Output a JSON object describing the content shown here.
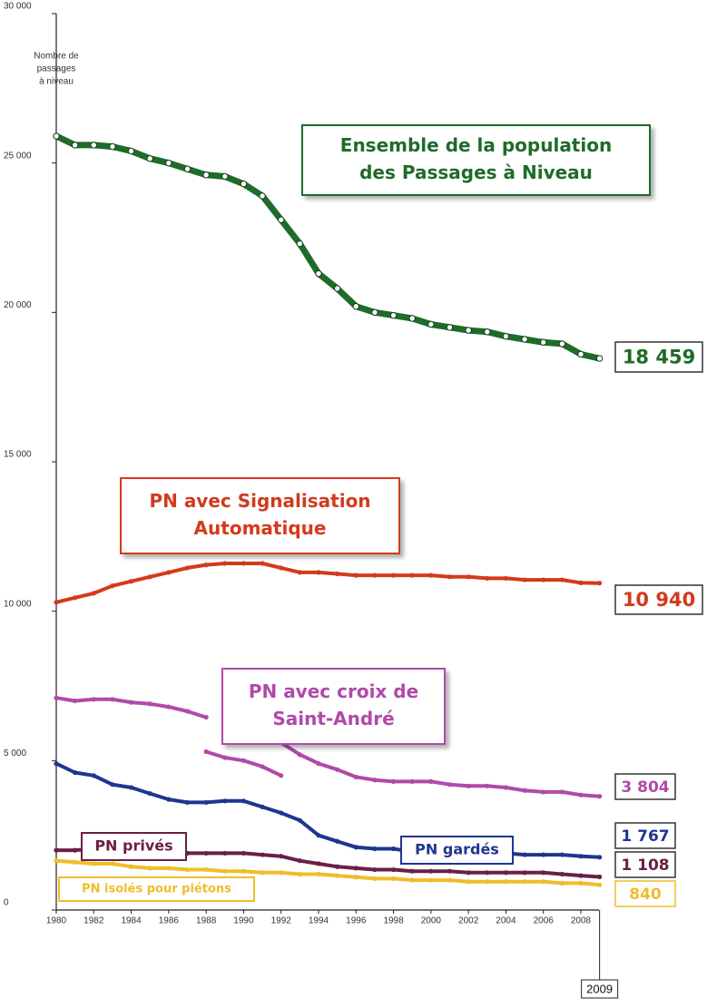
{
  "chart_data": {
    "type": "line",
    "y_axis_label": [
      "Nombre de",
      "passages",
      "à niveau"
    ],
    "x": [
      1980,
      1981,
      1982,
      1983,
      1984,
      1985,
      1986,
      1987,
      1988,
      1989,
      1990,
      1991,
      1992,
      1993,
      1994,
      1995,
      1996,
      1997,
      1998,
      1999,
      2000,
      2001,
      2002,
      2003,
      2004,
      2005,
      2006,
      2007,
      2008,
      2009
    ],
    "xlim": [
      1980,
      2009
    ],
    "xticks": [
      1980,
      1982,
      1984,
      1986,
      1988,
      1990,
      1992,
      1994,
      1996,
      1998,
      2000,
      2002,
      2004,
      2006,
      2008
    ],
    "x_highlight": 2009,
    "ylim": [
      0,
      30000
    ],
    "yticks": [
      {
        "value": 0,
        "label": "0"
      },
      {
        "value": 5000,
        "label": "5 000"
      },
      {
        "value": 10000,
        "label": "10 000"
      },
      {
        "value": 15000,
        "label": "15 000"
      },
      {
        "value": 20000,
        "label": "20 000"
      },
      {
        "value": 25000,
        "label": "25 000"
      },
      {
        "value": 30000,
        "label": "30 000"
      }
    ],
    "series": [
      {
        "name": [
          "Ensemble de la population",
          "des Passages à Niveau"
        ],
        "color": "#1e6b2a",
        "marker": "open",
        "values": [
          25900,
          25600,
          25600,
          25550,
          25400,
          25150,
          25000,
          24800,
          24600,
          24550,
          24300,
          23900,
          23100,
          22300,
          21300,
          20800,
          20200,
          20000,
          19900,
          19800,
          19600,
          19500,
          19400,
          19350,
          19200,
          19100,
          19000,
          18950,
          18600,
          18459
        ],
        "value_label": "18 459"
      },
      {
        "name": [
          "PN avec Signalisation",
          "Automatique"
        ],
        "color": "#d23a1c",
        "marker": "dot",
        "values": [
          10300,
          10450,
          10600,
          10850,
          11000,
          11150,
          11300,
          11450,
          11550,
          11600,
          11600,
          11600,
          11450,
          11300,
          11300,
          11250,
          11200,
          11200,
          11200,
          11200,
          11200,
          11150,
          11150,
          11100,
          11100,
          11050,
          11050,
          11050,
          10950,
          10940
        ],
        "value_label": "10 940"
      },
      {
        "name": [
          "PN avec croix de",
          "Saint-André"
        ],
        "color": "#b04aa8",
        "marker": "dot",
        "x": [
          1980,
          1981,
          1982,
          1983,
          1984,
          1985,
          1986,
          1987,
          1988,
          null,
          1988,
          1989,
          1990,
          1991,
          1992,
          null,
          1992,
          1993,
          1994,
          1995,
          1996,
          1997,
          1998,
          1999,
          2000,
          2001,
          2002,
          2003,
          2004,
          2005,
          2006,
          2007,
          2008,
          2009
        ],
        "values": [
          7100,
          7000,
          7050,
          7050,
          6950,
          6900,
          6800,
          6650,
          6450,
          null,
          5300,
          5100,
          5000,
          4800,
          4500,
          null,
          5600,
          5200,
          4900,
          4700,
          4450,
          4350,
          4300,
          4300,
          4300,
          4200,
          4150,
          4150,
          4100,
          4000,
          3950,
          3950,
          3850,
          3804
        ],
        "value_label": "3 804"
      },
      {
        "name": [
          "PN gardés"
        ],
        "color": "#1f3590",
        "marker": "dot",
        "values": [
          4900,
          4600,
          4500,
          4200,
          4100,
          3900,
          3700,
          3600,
          3600,
          3650,
          3650,
          3450,
          3250,
          3000,
          2500,
          2300,
          2100,
          2050,
          2050,
          1950,
          1950,
          1900,
          1900,
          1900,
          1900,
          1850,
          1850,
          1850,
          1800,
          1767
        ],
        "value_label": "1 767"
      },
      {
        "name": [
          "PN privés"
        ],
        "color": "#6a1f45",
        "marker": "dot",
        "values": [
          2000,
          2000,
          2050,
          2050,
          1950,
          1950,
          1900,
          1900,
          1900,
          1900,
          1900,
          1850,
          1800,
          1650,
          1550,
          1450,
          1400,
          1350,
          1350,
          1300,
          1300,
          1300,
          1250,
          1250,
          1250,
          1250,
          1250,
          1200,
          1150,
          1108
        ],
        "value_label": "1 108"
      },
      {
        "name": [
          "PN isolés pour piétons"
        ],
        "color": "#efbd2c",
        "marker": "dot",
        "values": [
          1650,
          1600,
          1550,
          1550,
          1450,
          1400,
          1400,
          1350,
          1350,
          1300,
          1300,
          1250,
          1250,
          1200,
          1200,
          1150,
          1100,
          1050,
          1050,
          1000,
          1000,
          1000,
          950,
          950,
          950,
          950,
          950,
          900,
          900,
          840
        ],
        "value_label": "840"
      }
    ]
  }
}
